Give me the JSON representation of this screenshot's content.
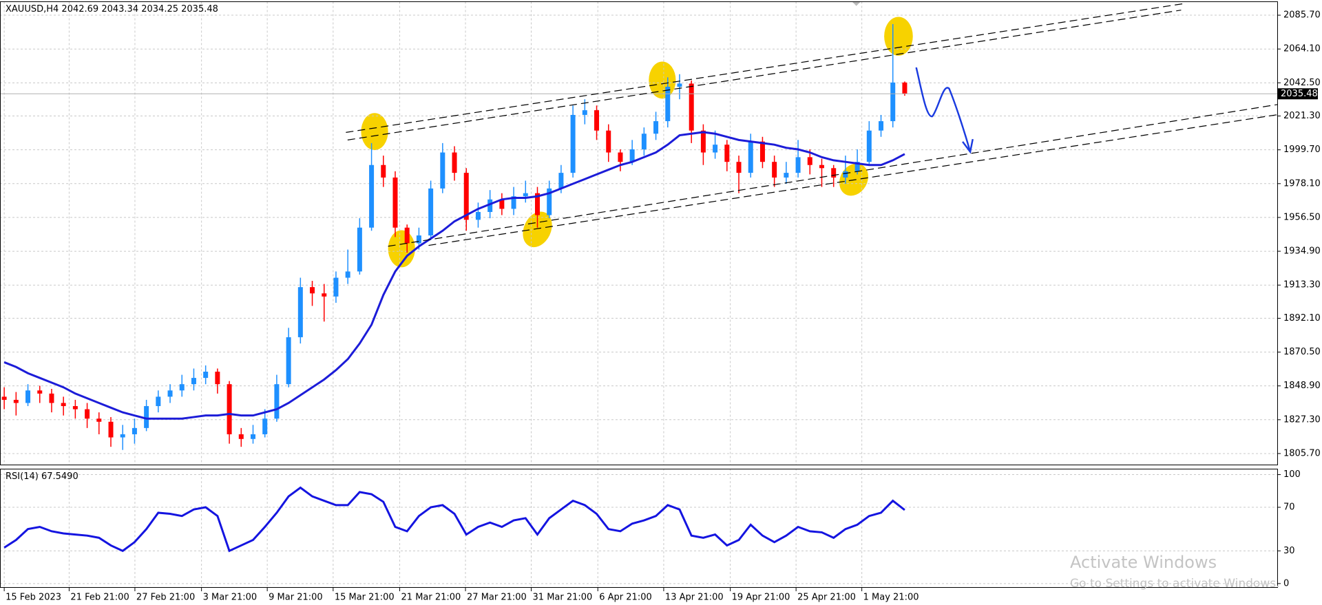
{
  "symbol": "XAUUSD,H4",
  "chart_data": [
    {
      "type": "candlestick",
      "candles": [
        [
          1842,
          1848,
          1834,
          1840
        ],
        [
          1840,
          1845,
          1830,
          1838
        ],
        [
          1838,
          1850,
          1836,
          1846
        ],
        [
          1846,
          1849,
          1838,
          1844
        ],
        [
          1844,
          1847,
          1832,
          1838
        ],
        [
          1838,
          1842,
          1830,
          1836
        ],
        [
          1836,
          1840,
          1828,
          1834
        ],
        [
          1834,
          1838,
          1822,
          1828
        ],
        [
          1828,
          1832,
          1818,
          1826
        ],
        [
          1826,
          1829,
          1810,
          1816
        ],
        [
          1816,
          1824,
          1808,
          1818
        ],
        [
          1818,
          1828,
          1812,
          1822
        ],
        [
          1822,
          1840,
          1820,
          1836
        ],
        [
          1836,
          1846,
          1832,
          1842
        ],
        [
          1842,
          1850,
          1838,
          1846
        ],
        [
          1846,
          1856,
          1842,
          1850
        ],
        [
          1850,
          1860,
          1846,
          1854
        ],
        [
          1854,
          1862,
          1850,
          1858
        ],
        [
          1858,
          1860,
          1844,
          1850
        ],
        [
          1850,
          1852,
          1812,
          1818
        ],
        [
          1818,
          1822,
          1810,
          1815
        ],
        [
          1815,
          1824,
          1812,
          1818
        ],
        [
          1818,
          1834,
          1816,
          1828
        ],
        [
          1828,
          1856,
          1826,
          1850
        ],
        [
          1850,
          1886,
          1848,
          1880
        ],
        [
          1880,
          1918,
          1876,
          1912
        ],
        [
          1912,
          1916,
          1900,
          1908
        ],
        [
          1908,
          1914,
          1890,
          1906
        ],
        [
          1906,
          1922,
          1902,
          1918
        ],
        [
          1918,
          1936,
          1914,
          1922
        ],
        [
          1922,
          1956,
          1920,
          1950
        ],
        [
          1950,
          2004,
          1948,
          1990
        ],
        [
          1990,
          1996,
          1976,
          1982
        ],
        [
          1982,
          1986,
          1944,
          1950
        ],
        [
          1950,
          1952,
          1934,
          1940
        ],
        [
          1940,
          1950,
          1936,
          1945
        ],
        [
          1945,
          1980,
          1942,
          1975
        ],
        [
          1975,
          2004,
          1972,
          1998
        ],
        [
          1998,
          2002,
          1980,
          1985
        ],
        [
          1985,
          1988,
          1948,
          1955
        ],
        [
          1955,
          1966,
          1950,
          1960
        ],
        [
          1960,
          1974,
          1956,
          1968
        ],
        [
          1968,
          1972,
          1958,
          1962
        ],
        [
          1962,
          1976,
          1958,
          1970
        ],
        [
          1970,
          1980,
          1966,
          1972
        ],
        [
          1972,
          1976,
          1950,
          1958
        ],
        [
          1958,
          1980,
          1956,
          1975
        ],
        [
          1975,
          1990,
          1972,
          1985
        ],
        [
          1985,
          2028,
          1982,
          2022
        ],
        [
          2022,
          2032,
          2016,
          2025
        ],
        [
          2025,
          2028,
          2006,
          2012
        ],
        [
          2012,
          2016,
          1992,
          1998
        ],
        [
          1998,
          2000,
          1986,
          1992
        ],
        [
          1992,
          2006,
          1990,
          2000
        ],
        [
          2000,
          2014,
          1996,
          2010
        ],
        [
          2010,
          2024,
          2006,
          2018
        ],
        [
          2018,
          2046,
          2014,
          2040
        ],
        [
          2040,
          2048,
          2032,
          2042
        ],
        [
          2042,
          2044,
          2004,
          2012
        ],
        [
          2012,
          2016,
          1990,
          1998
        ],
        [
          1998,
          2012,
          1994,
          2003
        ],
        [
          2003,
          2006,
          1986,
          1992
        ],
        [
          1992,
          1996,
          1972,
          1985
        ],
        [
          1985,
          2010,
          1982,
          2005
        ],
        [
          2005,
          2008,
          1988,
          1992
        ],
        [
          1992,
          1996,
          1976,
          1982
        ],
        [
          1982,
          1992,
          1978,
          1985
        ],
        [
          1985,
          2006,
          1982,
          1995
        ],
        [
          1995,
          2000,
          1984,
          1990
        ],
        [
          1990,
          1994,
          1976,
          1988
        ],
        [
          1988,
          1990,
          1976,
          1982
        ],
        [
          1982,
          1996,
          1978,
          1986
        ],
        [
          1986,
          2000,
          1984,
          1992
        ],
        [
          1992,
          2018,
          1990,
          2012
        ],
        [
          2012,
          2022,
          2008,
          2018
        ],
        [
          2018,
          2080,
          2014,
          2042.69
        ],
        [
          2042.69,
          2043.34,
          2034.25,
          2035.48
        ]
      ],
      "up_color": "#1e90ff",
      "down_color": "#ff0000",
      "ma": {
        "color": "#1c1cd8",
        "values": [
          1864,
          1861,
          1857,
          1854,
          1851,
          1848,
          1844,
          1841,
          1838,
          1835,
          1832,
          1830,
          1828,
          1828,
          1828,
          1828,
          1829,
          1830,
          1830,
          1831,
          1830,
          1830,
          1832,
          1834,
          1838,
          1843,
          1848,
          1853,
          1859,
          1866,
          1876,
          1888,
          1907,
          1922,
          1932,
          1938,
          1943,
          1948,
          1954,
          1958,
          1962,
          1965,
          1968,
          1969,
          1969,
          1970,
          1972,
          1975,
          1978,
          1981,
          1984,
          1987,
          1990,
          1992,
          1995,
          1998,
          2003,
          2009,
          2010,
          2011,
          2010,
          2008,
          2006,
          2005,
          2004,
          2003,
          2001,
          2000,
          1998,
          1995,
          1993,
          1992,
          1991,
          1990,
          1990,
          1993,
          1997
        ]
      },
      "xlim": [
        -0.356,
        107.5
      ],
      "ylim": [
        1798.2,
        2094.3
      ],
      "yticks": [
        {
          "value": 2085.7,
          "label": "2085.70"
        },
        {
          "value": 2064.1,
          "label": "2064.10"
        },
        {
          "value": 2042.5,
          "label": "2042.50"
        },
        {
          "value": 2021.3,
          "label": "2021.30"
        },
        {
          "value": 1999.7,
          "label": "1999.70"
        },
        {
          "value": 1978.1,
          "label": "1978.10"
        },
        {
          "value": 1956.5,
          "label": "1956.50"
        },
        {
          "value": 1934.9,
          "label": "1934.90"
        },
        {
          "value": 1913.3,
          "label": "1913.30"
        },
        {
          "value": 1892.1,
          "label": "1892.10"
        },
        {
          "value": 1870.5,
          "label": "1870.50"
        },
        {
          "value": 1848.9,
          "label": "1848.90"
        },
        {
          "value": 1827.3,
          "label": "1827.30"
        },
        {
          "value": 1805.7,
          "label": "1805.70"
        }
      ],
      "xticks": [
        {
          "value": 0,
          "label": "15 Feb 2023"
        },
        {
          "value": 5.48,
          "label": "21 Feb 21:00"
        },
        {
          "value": 11.03,
          "label": "27 Feb 21:00"
        },
        {
          "value": 16.65,
          "label": "3 Mar 21:00"
        },
        {
          "value": 22.2,
          "label": "9 Mar 21:00"
        },
        {
          "value": 27.76,
          "label": "15 Mar 21:00"
        },
        {
          "value": 33.38,
          "label": "21 Mar 21:00"
        },
        {
          "value": 38.93,
          "label": "27 Mar 21:00"
        },
        {
          "value": 44.48,
          "label": "31 Mar 21:00"
        },
        {
          "value": 50.1,
          "label": "6 Apr 21:00"
        },
        {
          "value": 55.66,
          "label": "13 Apr 21:00"
        },
        {
          "value": 61.28,
          "label": "19 Apr 21:00"
        },
        {
          "value": 66.83,
          "label": "25 Apr 21:00"
        },
        {
          "value": 72.38,
          "label": "1 May 21:00"
        }
      ],
      "grid": true
    },
    {
      "type": "line",
      "name": "RSI(14)",
      "last_label": "67.5490",
      "color": "#1414e0",
      "values": [
        33,
        40,
        50,
        52,
        48,
        46,
        45,
        44,
        42,
        35,
        30,
        38,
        50,
        65,
        64,
        62,
        68,
        70,
        62,
        30,
        35,
        40,
        52,
        65,
        80,
        88,
        80,
        76,
        72,
        72,
        84,
        82,
        75,
        52,
        48,
        62,
        70,
        72,
        64,
        45,
        52,
        56,
        52,
        58,
        60,
        45,
        60,
        68,
        76,
        72,
        64,
        50,
        48,
        55,
        58,
        62,
        72,
        68,
        44,
        42,
        45,
        35,
        40,
        54,
        44,
        38,
        44,
        52,
        48,
        47,
        42,
        50,
        54,
        62,
        65,
        76,
        67.549
      ],
      "xlim": [
        -0.356,
        107.5
      ],
      "ylim": [
        -3.9,
        105.4
      ],
      "yticks": [
        0,
        30,
        70,
        100
      ],
      "grid": true
    }
  ],
  "watermark": {
    "title": "Activate Windows",
    "subtitle": "Go to Settings to activate Windows."
  }
}
